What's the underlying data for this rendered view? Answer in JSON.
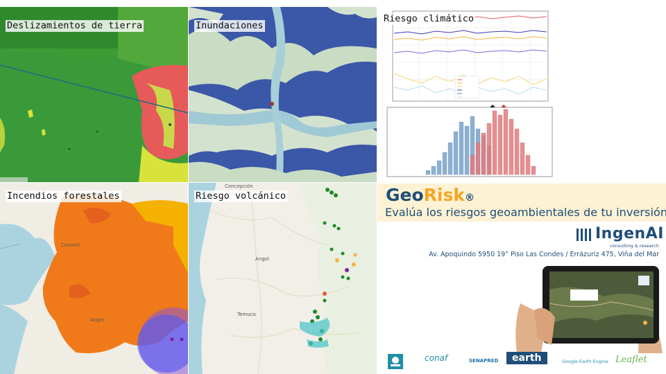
{
  "tiles": {
    "landslides": {
      "label": "Deslizamientos de tierra"
    },
    "floods": {
      "label": "Inundaciones"
    },
    "climate": {
      "label": "Riesgo climático"
    },
    "wildfires": {
      "label": "Incendios forestales"
    },
    "volcanic": {
      "label": "Riesgo volcánico"
    }
  },
  "brand": {
    "geo": "Geo",
    "risk": "Risk",
    "registered": "®",
    "tagline": "Evalúa los riesgos geoambientales de tu inversión"
  },
  "company": {
    "name": "IngenAI",
    "subtitle": "consulting & research",
    "address": "Av. Apoquindo 5950 19° Piso Las Condes / Errázuriz 475, Viña del Mar"
  },
  "map_places": {
    "wildfire_town_1": "Coronel",
    "wildfire_town_2": "Angol",
    "volcanic_city_1": "Concepción",
    "volcanic_town_2": "Angol",
    "volcanic_city_3": "Temuco"
  },
  "partner_logos": [
    {
      "name": "CONAF",
      "text": "conaf"
    },
    {
      "name": "SENAPRED",
      "text": "SENAPRED"
    },
    {
      "name": "earth",
      "text": "earth"
    },
    {
      "name": "Google Earth Engine",
      "text": "Google Earth Engine"
    },
    {
      "name": "Leaflet",
      "text": "Leaflet"
    }
  ],
  "colors": {
    "brand_blue": "#1f4e79",
    "brand_orange": "#f5a623",
    "band_bg": "#fdf2d3",
    "landslide_green": "#3a9a3a",
    "landslide_red": "#e65a5a",
    "flood_blue": "#3b57a8",
    "fire_orange": "#f07a1a",
    "volcano_green": "#1f8a2a"
  }
}
